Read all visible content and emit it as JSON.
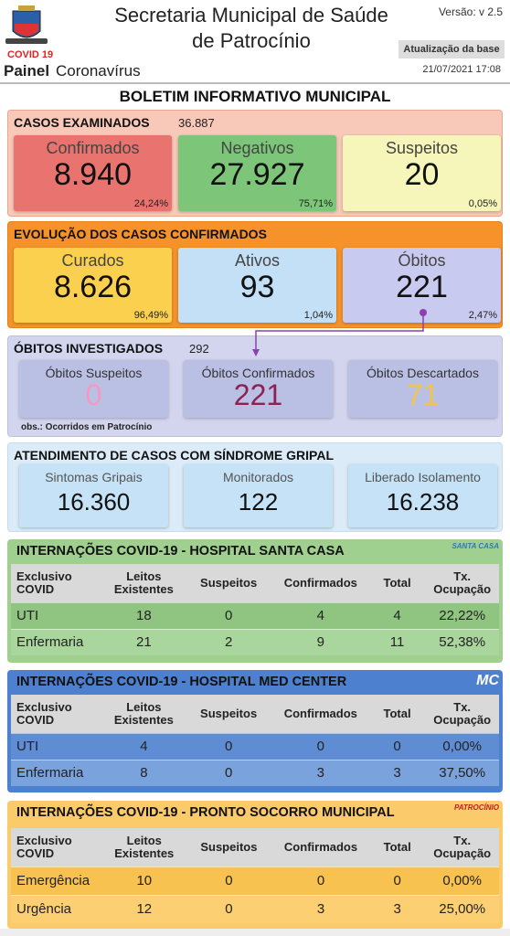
{
  "header": {
    "title_line1": "Secretaria Municipal de Saúde",
    "title_line2": "de Patrocínio",
    "version": "Versão: v 2.5",
    "update_label": "Atualização da base",
    "update_time": "21/07/2021 17:08",
    "covid": "COVID 19",
    "painel": "Painel",
    "painel_sub": "Coronavírus"
  },
  "bulletin_title": "BOLETIM INFORMATIVO MUNICIPAL",
  "sections": [
    {
      "title": "CASOS EXAMINADOS",
      "total": "36.887",
      "cards": [
        {
          "label": "Confirmados",
          "value": "8.940",
          "pct": "24,24%"
        },
        {
          "label": "Negativos",
          "value": "27.927",
          "pct": "75,71%"
        },
        {
          "label": "Suspeitos",
          "value": "20",
          "pct": "0,05%"
        }
      ]
    },
    {
      "title": "EVOLUÇÃO DOS CASOS CONFIRMADOS",
      "cards": [
        {
          "label": "Curados",
          "value": "8.626",
          "pct": "96,49%"
        },
        {
          "label": "Ativos",
          "value": "93",
          "pct": "1,04%"
        },
        {
          "label": "Óbitos",
          "value": "221",
          "pct": "2,47%"
        }
      ]
    },
    {
      "title": "ÓBITOS INVESTIGADOS",
      "total": "292",
      "cards": [
        {
          "label": "Óbitos Suspeitos",
          "value": "0"
        },
        {
          "label": "Óbitos Confirmados",
          "value": "221"
        },
        {
          "label": "Óbitos Descartados",
          "value": "71"
        }
      ],
      "obs": "obs.: Ocorridos em Patrocínio"
    },
    {
      "title": "ATENDIMENTO DE CASOS COM SÍNDROME GRIPAL",
      "cards": [
        {
          "label": "Sintomas Gripais",
          "value": "16.360"
        },
        {
          "label": "Monitorados",
          "value": "122"
        },
        {
          "label": "Liberado Isolamento",
          "value": "16.238"
        }
      ]
    }
  ],
  "hospitals": [
    {
      "title": "INTERNAÇÕES COVID-19 - HOSPITAL SANTA CASA",
      "logo_text": "SANTA CASA",
      "columns": [
        "Exclusivo COVID",
        "Leitos Existentes",
        "Suspeitos",
        "Confirmados",
        "Total",
        "Tx. Ocupação"
      ],
      "rows": [
        [
          "UTI",
          "18",
          "0",
          "4",
          "4",
          "22,22%"
        ],
        [
          "Enfermaria",
          "21",
          "2",
          "9",
          "11",
          "52,38%"
        ]
      ]
    },
    {
      "title": "INTERNAÇÕES COVID-19 - HOSPITAL MED CENTER",
      "logo_text": "MC",
      "columns": [
        "Exclusivo COVID",
        "Leitos Existentes",
        "Suspeitos",
        "Confirmados",
        "Total",
        "Tx. Ocupação"
      ],
      "rows": [
        [
          "UTI",
          "4",
          "0",
          "0",
          "0",
          "0,00%"
        ],
        [
          "Enfermaria",
          "8",
          "0",
          "3",
          "3",
          "37,50%"
        ]
      ]
    },
    {
      "title": "INTERNAÇÕES COVID-19 - PRONTO SOCORRO MUNICIPAL",
      "logo_text": "PATROCÍNIO",
      "columns": [
        "Exclusivo COVID",
        "Leitos Existentes",
        "Suspeitos",
        "Confirmados",
        "Total",
        "Tx. Ocupação"
      ],
      "rows": [
        [
          "Emergência",
          "10",
          "0",
          "0",
          "0",
          "0,00%"
        ],
        [
          "Urgência",
          "12",
          "0",
          "3",
          "3",
          "25,00%"
        ]
      ]
    }
  ]
}
